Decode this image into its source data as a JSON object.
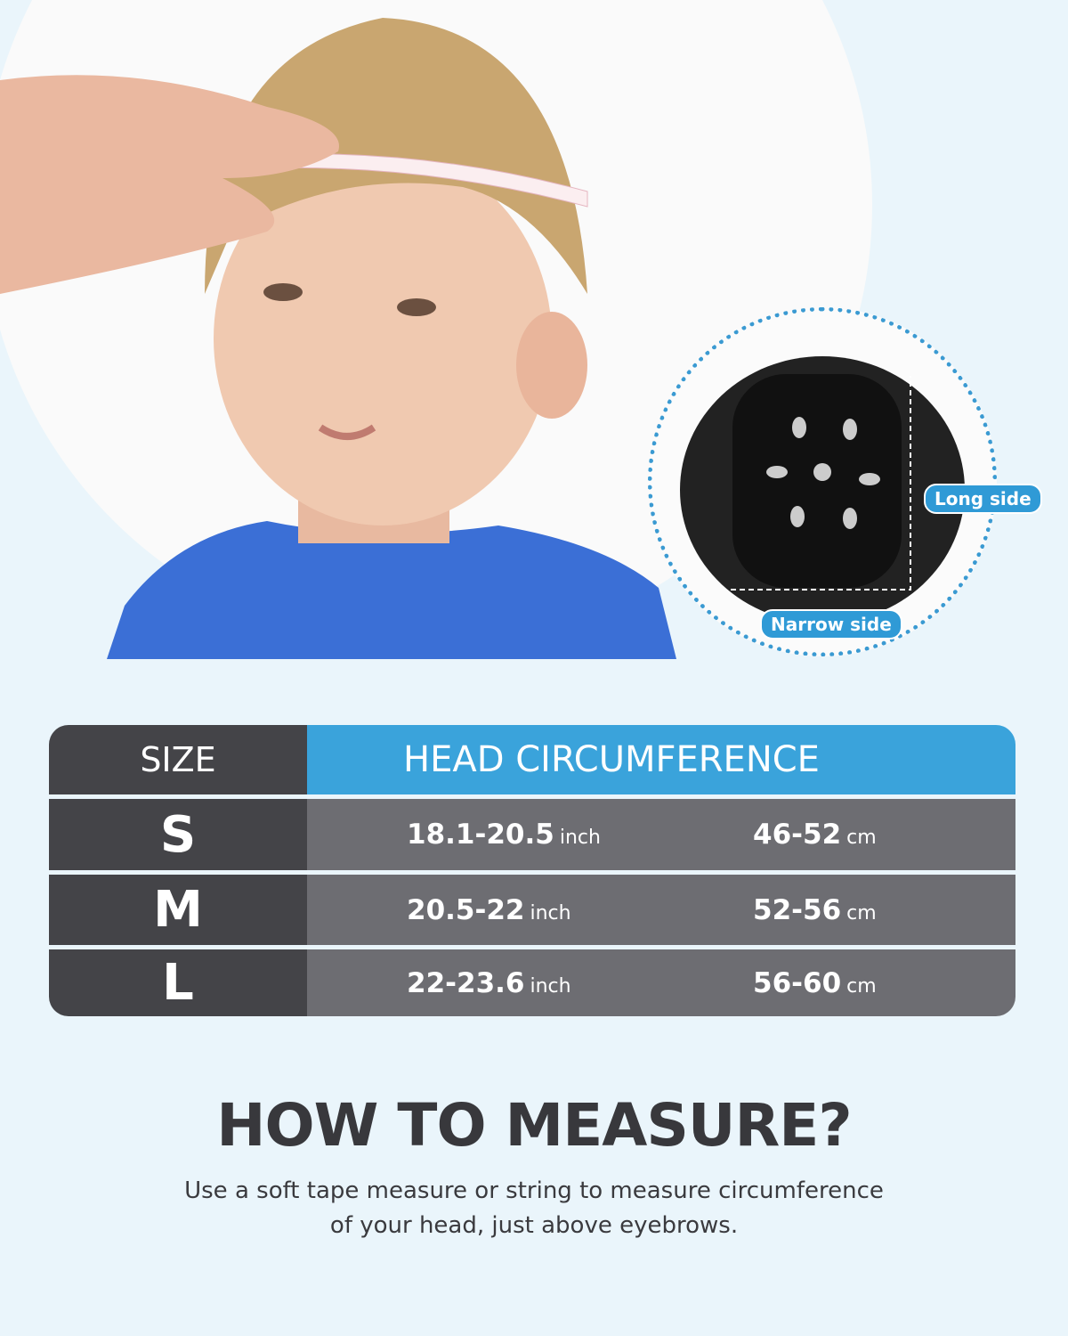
{
  "helmet_labels": {
    "long_side": "Long side",
    "narrow_side": "Narrow side"
  },
  "size_table": {
    "header": {
      "size": "SIZE",
      "measure": "HEAD CIRCUMFERENCE"
    },
    "rows": [
      {
        "size": "S",
        "inch": "18.1-20.5",
        "inch_unit": "inch",
        "cm": "46-52",
        "cm_unit": "cm"
      },
      {
        "size": "M",
        "inch": "20.5-22",
        "inch_unit": "inch",
        "cm": "52-56",
        "cm_unit": "cm"
      },
      {
        "size": "L",
        "inch": "22-23.6",
        "inch_unit": "inch",
        "cm": "56-60",
        "cm_unit": "cm"
      }
    ]
  },
  "instructions": {
    "title": "HOW TO MEASURE?",
    "line1": "Use a soft tape measure or string to measure circumference",
    "line2": "of your head, just above eyebrows."
  },
  "colors": {
    "accent": "#3aa3db",
    "dark": "#444448",
    "row": "#6d6d72",
    "background": "#eaf5fb"
  }
}
